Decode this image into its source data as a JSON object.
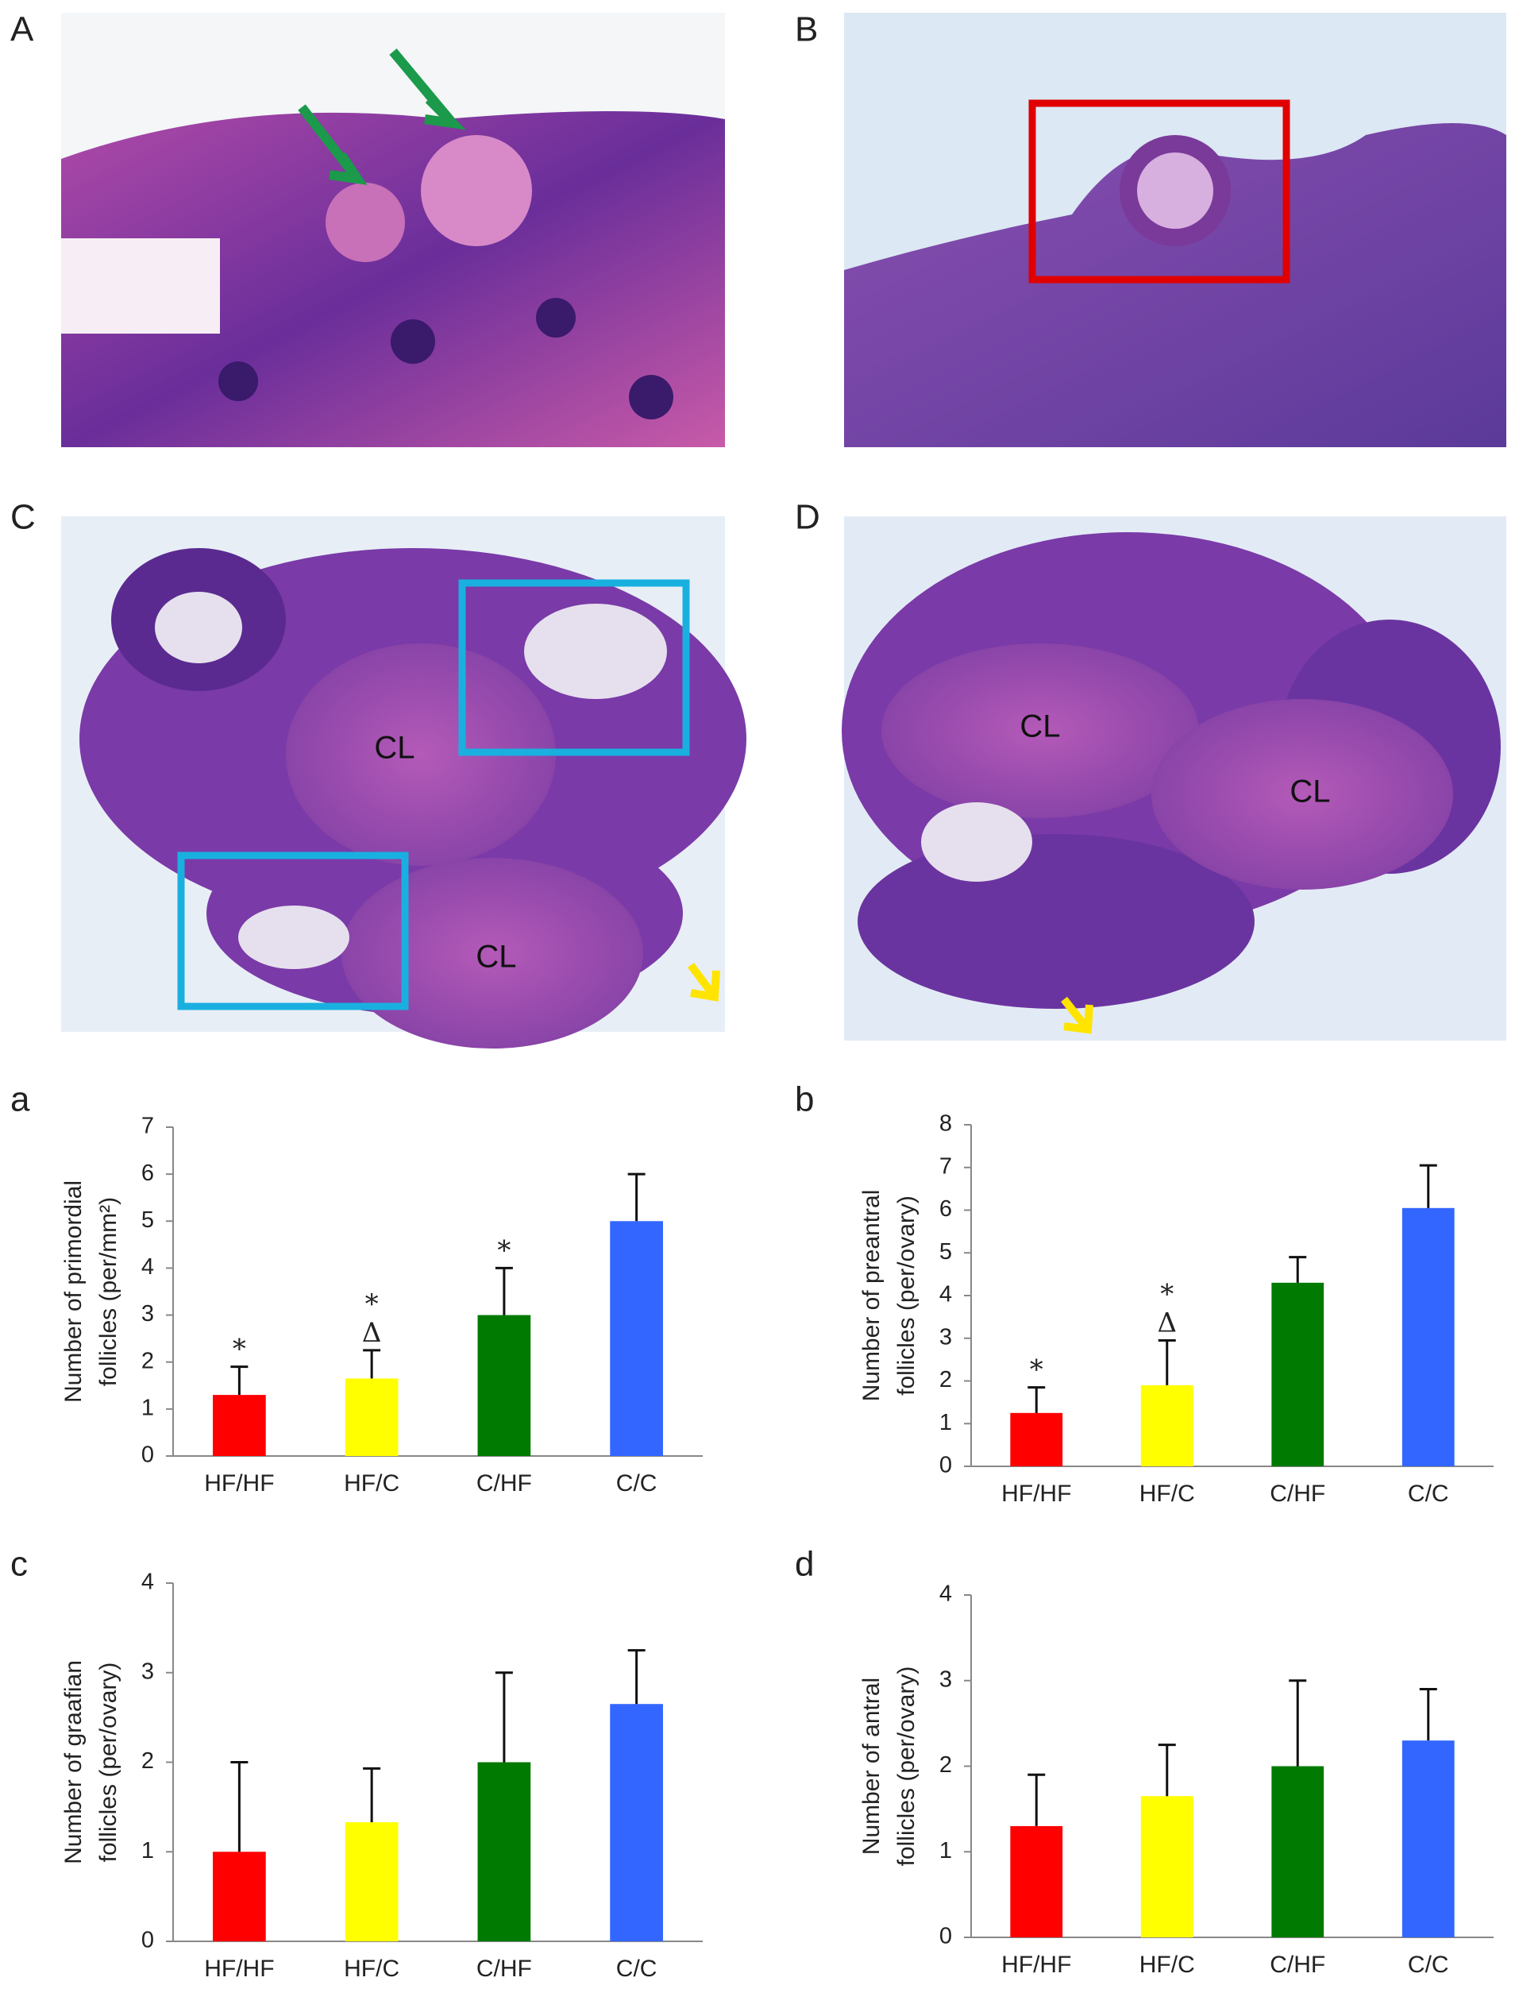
{
  "panels": [
    {
      "label": "A"
    },
    {
      "label": "B"
    },
    {
      "label": "C",
      "annotations": [
        "CL",
        "CL"
      ]
    },
    {
      "label": "D",
      "annotations": [
        "CL",
        "CL"
      ]
    }
  ],
  "chart_data": [
    {
      "type": "bar",
      "panel_label": "a",
      "y_label": [
        "Number of primordial",
        "follicles (per/mm²)"
      ],
      "categories": [
        "HF/HF",
        "HF/C",
        "C/HF",
        "C/C"
      ],
      "values": [
        1.3,
        1.65,
        3.0,
        5.0
      ],
      "errors": [
        0.6,
        0.6,
        1.0,
        1.0
      ],
      "colors": [
        "#ff0000",
        "#ffff00",
        "#007a00",
        "#3366ff"
      ],
      "annotations": [
        [
          "*"
        ],
        [
          "*",
          "Δ"
        ],
        [
          "*"
        ],
        []
      ],
      "ylim": [
        0,
        7
      ],
      "yticks": [
        0,
        1,
        2,
        3,
        4,
        5,
        6,
        7
      ]
    },
    {
      "type": "bar",
      "panel_label": "b",
      "y_label": [
        "Number of preantral",
        "follicles (per/ovary)"
      ],
      "categories": [
        "HF/HF",
        "HF/C",
        "C/HF",
        "C/C"
      ],
      "values": [
        1.25,
        1.9,
        4.3,
        6.05
      ],
      "errors": [
        0.6,
        1.05,
        0.6,
        1.0
      ],
      "colors": [
        "#ff0000",
        "#ffff00",
        "#007a00",
        "#3366ff"
      ],
      "annotations": [
        [
          "*"
        ],
        [
          "*",
          "Δ"
        ],
        [],
        []
      ],
      "ylim": [
        0,
        8
      ],
      "yticks": [
        0,
        1,
        2,
        3,
        4,
        5,
        6,
        7,
        8
      ]
    },
    {
      "type": "bar",
      "panel_label": "c",
      "y_label": [
        "Number of graafian",
        "follicles (per/ovary)"
      ],
      "categories": [
        "HF/HF",
        "HF/C",
        "C/HF",
        "C/C"
      ],
      "values": [
        1.0,
        1.33,
        2.0,
        2.65
      ],
      "errors": [
        1.0,
        0.6,
        1.0,
        0.6
      ],
      "colors": [
        "#ff0000",
        "#ffff00",
        "#007a00",
        "#3366ff"
      ],
      "annotations": [
        [],
        [],
        [],
        []
      ],
      "ylim": [
        0,
        4
      ],
      "yticks": [
        0,
        1,
        2,
        3,
        4
      ]
    },
    {
      "type": "bar",
      "panel_label": "d",
      "y_label": [
        "Number of antral",
        "follicles (per/ovary)"
      ],
      "categories": [
        "HF/HF",
        "HF/C",
        "C/HF",
        "C/C"
      ],
      "values": [
        1.3,
        1.65,
        2.0,
        2.3
      ],
      "errors": [
        0.6,
        0.6,
        1.0,
        0.6
      ],
      "colors": [
        "#ff0000",
        "#ffff00",
        "#007a00",
        "#3366ff"
      ],
      "annotations": [
        [],
        [],
        [],
        []
      ],
      "ylim": [
        0,
        4
      ],
      "yticks": [
        0,
        1,
        2,
        3,
        4
      ]
    }
  ]
}
